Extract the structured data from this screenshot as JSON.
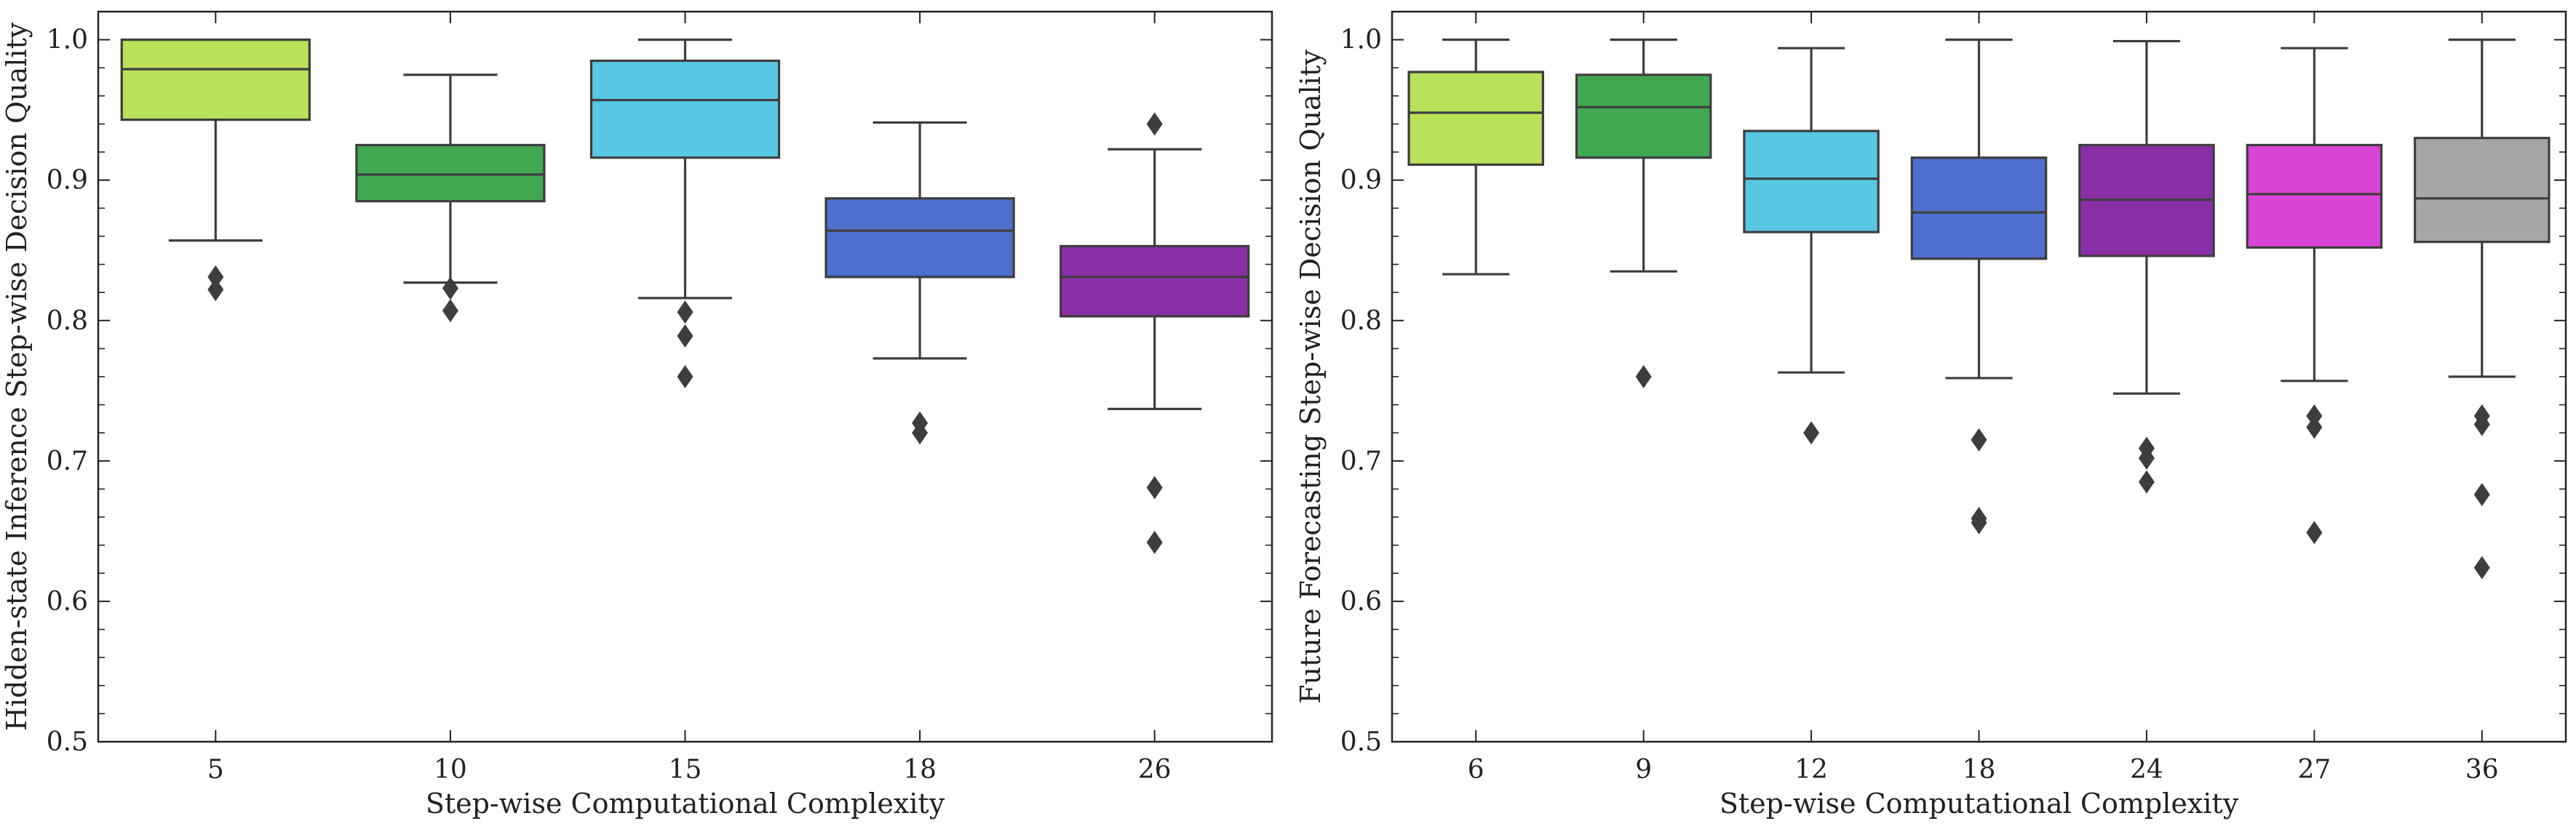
{
  "chart_data": [
    {
      "type": "box",
      "xlabel": "Step-wise Computational Complexity",
      "ylabel": "Hidden-state Inference Step-wise Decision Quality",
      "ylim": [
        0.5,
        1.02
      ],
      "yticks": [
        "0.5",
        "0.6",
        "0.7",
        "0.8",
        "0.9",
        "1.0"
      ],
      "grid": false,
      "legend": "none",
      "boxes": [
        {
          "category": "5",
          "color": "#b9e15a",
          "whisker_low": 0.857,
          "q1": 0.943,
          "median": 0.979,
          "q3": 1.0,
          "whisker_high": 1.0,
          "outliers": [
            0.831,
            0.822
          ]
        },
        {
          "category": "10",
          "color": "#42a752",
          "whisker_low": 0.827,
          "q1": 0.885,
          "median": 0.904,
          "q3": 0.925,
          "whisker_high": 0.975,
          "outliers": [
            0.823,
            0.807
          ]
        },
        {
          "category": "15",
          "color": "#57c7e3",
          "whisker_low": 0.816,
          "q1": 0.916,
          "median": 0.957,
          "q3": 0.985,
          "whisker_high": 1.0,
          "outliers": [
            0.806,
            0.789,
            0.76
          ]
        },
        {
          "category": "18",
          "color": "#4e6fcc",
          "whisker_low": 0.773,
          "q1": 0.831,
          "median": 0.864,
          "q3": 0.887,
          "whisker_high": 0.941,
          "outliers": [
            0.727,
            0.72
          ]
        },
        {
          "category": "26",
          "color": "#8a2ea6",
          "whisker_low": 0.737,
          "q1": 0.803,
          "median": 0.831,
          "q3": 0.853,
          "whisker_high": 0.922,
          "outliers": [
            0.94,
            0.681,
            0.642
          ]
        }
      ]
    },
    {
      "type": "box",
      "xlabel": "Step-wise Computational Complexity",
      "ylabel": "Future Forecasting Step-wise Decision Quality",
      "ylim": [
        0.5,
        1.02
      ],
      "yticks": [
        "0.5",
        "0.6",
        "0.7",
        "0.8",
        "0.9",
        "1.0"
      ],
      "grid": false,
      "legend": "none",
      "boxes": [
        {
          "category": "6",
          "color": "#b9e15a",
          "whisker_low": 0.833,
          "q1": 0.911,
          "median": 0.948,
          "q3": 0.977,
          "whisker_high": 1.0,
          "outliers": []
        },
        {
          "category": "9",
          "color": "#42a752",
          "whisker_low": 0.835,
          "q1": 0.916,
          "median": 0.952,
          "q3": 0.975,
          "whisker_high": 1.0,
          "outliers": [
            0.76
          ]
        },
        {
          "category": "12",
          "color": "#57c7e3",
          "whisker_low": 0.763,
          "q1": 0.863,
          "median": 0.901,
          "q3": 0.935,
          "whisker_high": 0.994,
          "outliers": [
            0.72
          ]
        },
        {
          "category": "18",
          "color": "#4e6fcc",
          "whisker_low": 0.759,
          "q1": 0.844,
          "median": 0.877,
          "q3": 0.916,
          "whisker_high": 1.0,
          "outliers": [
            0.715,
            0.659,
            0.656
          ]
        },
        {
          "category": "24",
          "color": "#8a2ea6",
          "whisker_low": 0.748,
          "q1": 0.846,
          "median": 0.886,
          "q3": 0.925,
          "whisker_high": 0.999,
          "outliers": [
            0.709,
            0.702,
            0.685
          ]
        },
        {
          "category": "27",
          "color": "#d845d6",
          "whisker_low": 0.757,
          "q1": 0.852,
          "median": 0.89,
          "q3": 0.925,
          "whisker_high": 0.994,
          "outliers": [
            0.732,
            0.724,
            0.649
          ]
        },
        {
          "category": "36",
          "color": "#a6a6a6",
          "whisker_low": 0.76,
          "q1": 0.856,
          "median": 0.887,
          "q3": 0.93,
          "whisker_high": 1.0,
          "outliers": [
            0.732,
            0.726,
            0.676,
            0.624
          ]
        }
      ]
    }
  ]
}
